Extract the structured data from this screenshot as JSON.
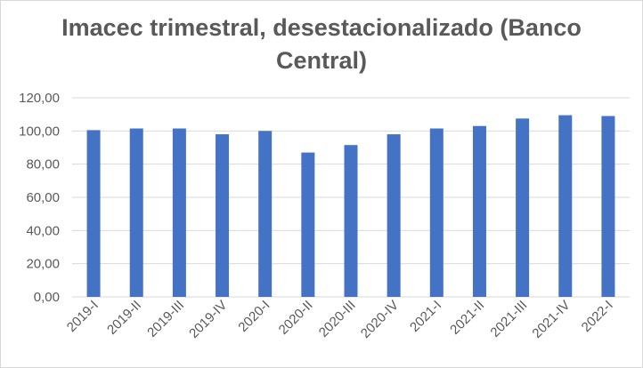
{
  "chart_data": {
    "type": "bar",
    "title": "Imacec trimestral, desestacionalizado (Banco Central)",
    "categories": [
      "2019-I",
      "2019-II",
      "2019-III",
      "2019-IV",
      "2020-I",
      "2020-II",
      "2020-III",
      "2020-IV",
      "2021-I",
      "2021-II",
      "2021-III",
      "2021-IV",
      "2022-I"
    ],
    "values": [
      100.5,
      101.5,
      101.5,
      98.0,
      100.0,
      87.0,
      91.5,
      98.0,
      101.5,
      103.0,
      107.5,
      109.5,
      109.0
    ],
    "ylim": [
      0,
      120
    ],
    "yticks": [
      "0,00",
      "20,00",
      "40,00",
      "60,00",
      "80,00",
      "100,00",
      "120,00"
    ],
    "xlabel": "",
    "ylabel": "",
    "grid": true,
    "legend": "none",
    "bar_color": "#4472c4",
    "grid_color": "#d9d9d9"
  }
}
